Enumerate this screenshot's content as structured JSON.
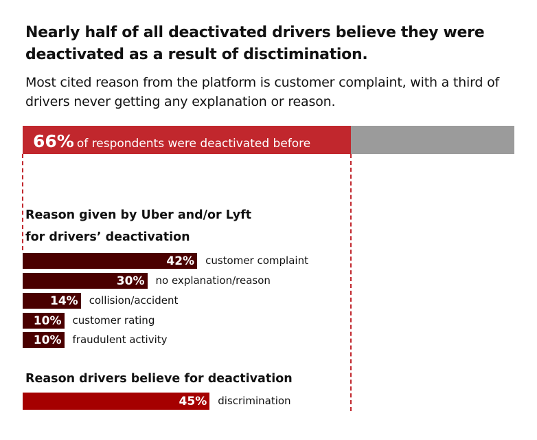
{
  "title": "Nearly half of all deactivated drivers believe they were deactivated as a result of disctimination.",
  "subtitle": "Most cited reason from the platform is customer complaint, with a third of drivers never getting any explanation or reason.",
  "chart_data": [
    {
      "type": "bar",
      "orientation": "horizontal",
      "stacked": true,
      "value": 66,
      "value_label": "66%",
      "label": "of respondents were deactivated before",
      "xlim": [
        0,
        100
      ],
      "colors": {
        "filled": "#c1272d",
        "remainder": "#9b9b9b"
      }
    },
    {
      "type": "bar",
      "orientation": "horizontal",
      "title_line1": "Reason given by Uber and/or Lyft",
      "title_line2": "for drivers’ deactivation",
      "categories": [
        "customer complaint",
        "no explanation/reason",
        "collision/accident",
        "customer rating",
        "fraudulent activity"
      ],
      "values": [
        42,
        30,
        14,
        10,
        10
      ],
      "value_labels": [
        "42%",
        "30%",
        "14%",
        "10%",
        "10%"
      ],
      "color": "#4a0000"
    },
    {
      "type": "bar",
      "orientation": "horizontal",
      "title": "Reason drivers believe for deactivation",
      "categories": [
        "discrimination"
      ],
      "values": [
        45
      ],
      "value_labels": [
        "45%"
      ],
      "color": "#a50000"
    }
  ]
}
